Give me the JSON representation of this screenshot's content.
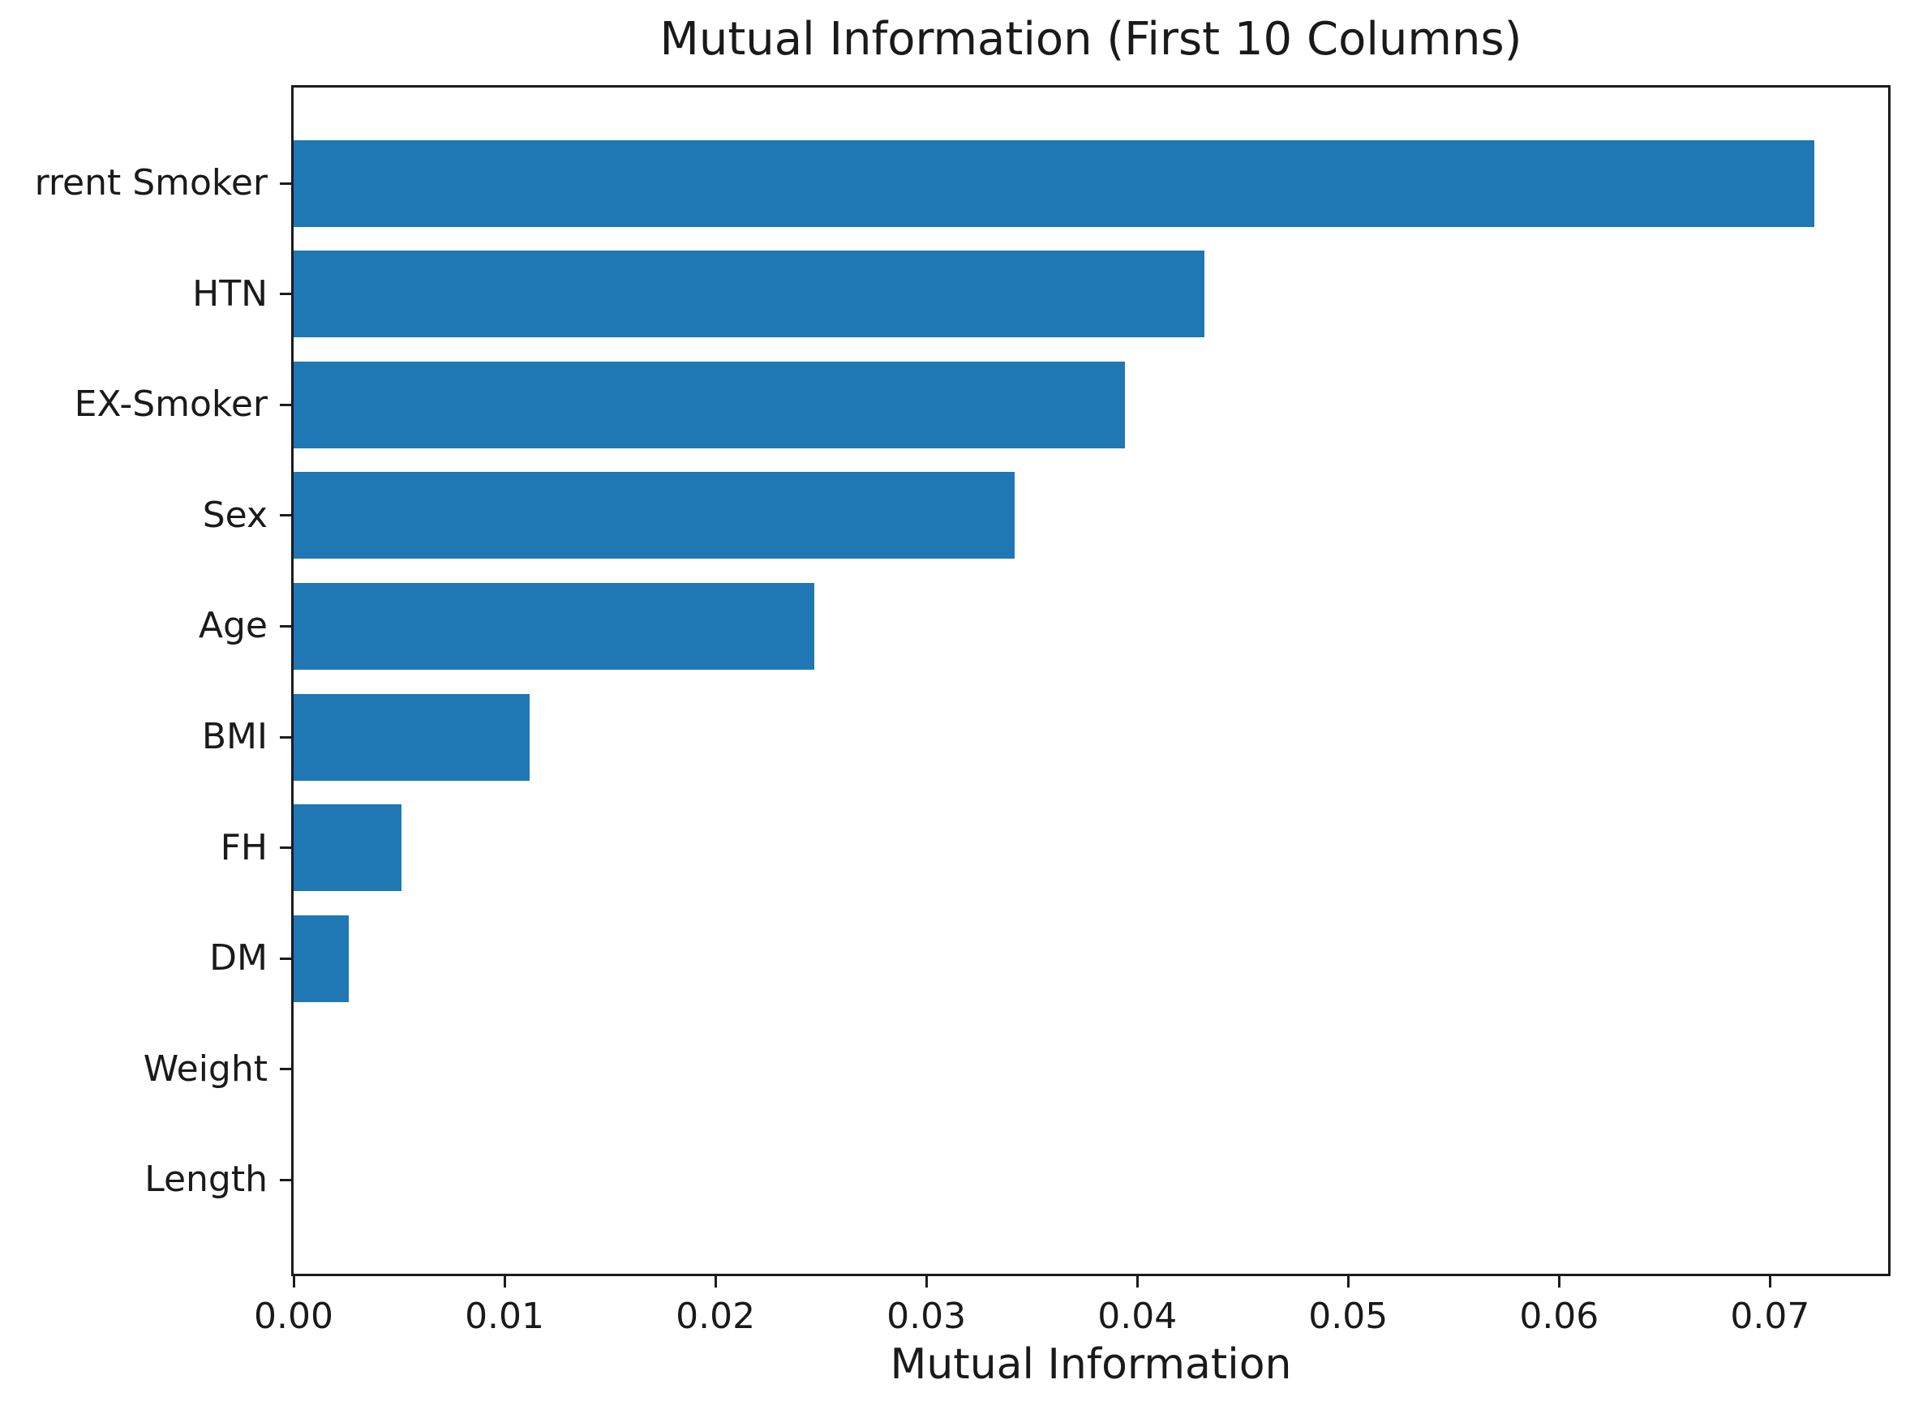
{
  "chart_data": {
    "type": "bar",
    "orientation": "horizontal",
    "title": "Mutual Information (First 10 Columns)",
    "xlabel": "Mutual Information",
    "ylabel": "",
    "categories": [
      "rrent Smoker",
      "HTN",
      "EX-Smoker",
      "Sex",
      "Age",
      "BMI",
      "FH",
      "DM",
      "Weight",
      "Length"
    ],
    "values": [
      0.0721,
      0.0432,
      0.0394,
      0.0342,
      0.0247,
      0.0112,
      0.0051,
      0.0026,
      0.0,
      0.0
    ],
    "x_ticks": [
      0.0,
      0.01,
      0.02,
      0.03,
      0.04,
      0.05,
      0.06,
      0.07
    ],
    "x_tick_labels": [
      "0.00",
      "0.01",
      "0.02",
      "0.03",
      "0.04",
      "0.05",
      "0.06",
      "0.07"
    ],
    "xlim": [
      0,
      0.0756
    ],
    "grid": false,
    "legend": "none"
  },
  "colors": {
    "bar": "#1f77b4",
    "axis": "#1c1c1c",
    "text": "#1a1a1a",
    "background": "#ffffff"
  }
}
